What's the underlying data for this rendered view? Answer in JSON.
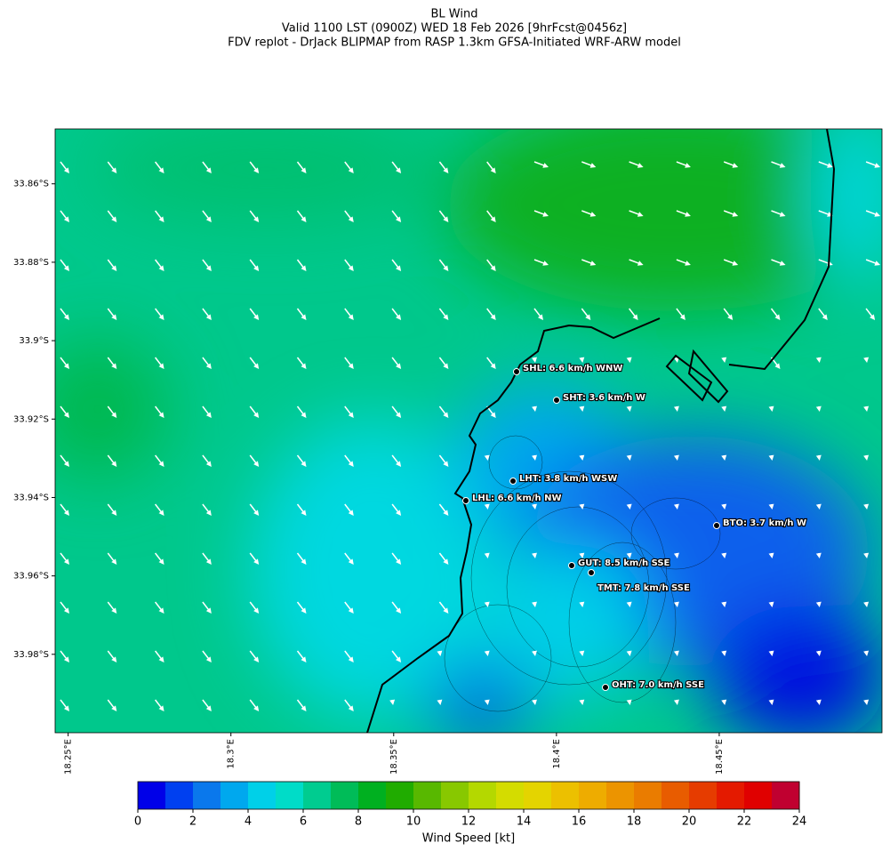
{
  "title": [
    "BL Wind",
    "Valid 1100 LST (0900Z) WED 18 Feb 2026 [9hrFcst@0456z]",
    "FDV replot - DrJack BLIPMAP from RASP 1.3km GFSA-Initiated WRF-ARW model"
  ],
  "map": {
    "xlim": [
      18.246,
      18.5
    ],
    "ylim": [
      -34.0,
      -33.846
    ],
    "lat_ticks": [
      {
        "value": -33.86,
        "label": "33.86°S"
      },
      {
        "value": -33.88,
        "label": "33.88°S"
      },
      {
        "value": -33.9,
        "label": "33.9°S"
      },
      {
        "value": -33.92,
        "label": "33.92°S"
      },
      {
        "value": -33.94,
        "label": "33.94°S"
      },
      {
        "value": -33.96,
        "label": "33.96°S"
      },
      {
        "value": -33.98,
        "label": "33.98°S"
      }
    ],
    "lon_ticks": [
      {
        "value": 18.25,
        "label": "18.25°E"
      },
      {
        "value": 18.3,
        "label": "18.3°E"
      },
      {
        "value": 18.35,
        "label": "18.35°E"
      },
      {
        "value": 18.4,
        "label": "18.4°E"
      },
      {
        "value": 18.45,
        "label": "18.45°E"
      }
    ],
    "stations": [
      {
        "label": "SHL: 6.6 km/h WNW"
      },
      {
        "label": "SHT: 3.6 km/h W"
      },
      {
        "label": "LHT: 3.8 km/h WSW"
      },
      {
        "label": "LHL: 6.6 km/h NW"
      },
      {
        "label": "BTO: 3.7 km/h W"
      },
      {
        "label": "GUT: 8.5 km/h SSE"
      },
      {
        "label": "TMT: 7.8 km/h SSE"
      },
      {
        "label": "OHT: 7.0 km/h SSE"
      }
    ]
  },
  "colorbar": {
    "lim": [
      0,
      24
    ],
    "ticks": [
      0,
      2,
      4,
      6,
      8,
      10,
      12,
      14,
      16,
      18,
      20,
      22,
      24
    ],
    "label": "Wind Speed [kt]",
    "colors": [
      "#0000e8",
      "#0040f0",
      "#0a78ec",
      "#00a8ee",
      "#00d0e8",
      "#00dcc8",
      "#00cc90",
      "#00bc58",
      "#00b020",
      "#20ac00",
      "#58b800",
      "#88c800",
      "#b4d800",
      "#d4dc00",
      "#e4d400",
      "#ecc000",
      "#eeac00",
      "#ec9400",
      "#ea7c00",
      "#e85c00",
      "#e63c00",
      "#e41a00",
      "#e00000",
      "#c00030"
    ]
  }
}
